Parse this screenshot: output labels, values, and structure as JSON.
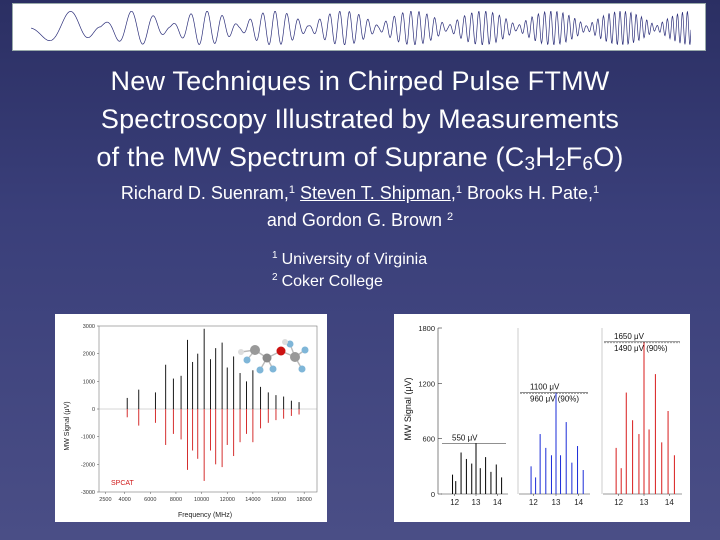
{
  "slide": {
    "title": {
      "line1": "New Techniques in Chirped Pulse FTMW",
      "line2": "Spectroscopy Illustrated by Measurements",
      "line3_prefix": "of the MW Spectrum of Suprane (C",
      "sub1": "3",
      "mid1": "H",
      "sub2": "2",
      "mid2": "F",
      "sub3": "6",
      "suffix": "O)"
    },
    "authors": {
      "a1": "Richard D. Suenram,",
      "a1_sup": "1",
      "a2": "Steven T. Shipman",
      "a2_tail": ",",
      "a2_sup": "1",
      "a3": "Brooks H. Pate,",
      "a3_sup": "1",
      "a4": "and Gordon G. Brown",
      "a4_sup": "2"
    },
    "affiliations": [
      {
        "sup": "1",
        "name": "University of Virginia"
      },
      {
        "sup": "2",
        "name": "Coker College"
      }
    ]
  },
  "chart_data": [
    {
      "type": "bar",
      "xlabel": "Frequency (MHz)",
      "ylabel": "MW Signal (μV)",
      "ylim": [
        -3000,
        3000
      ],
      "xlim": [
        2000,
        19000
      ],
      "y_ticks": [
        "3000",
        "2000",
        "1000",
        "0",
        "-1000",
        "-2000",
        "-3000"
      ],
      "x_ticks": [
        "2500",
        "4000",
        "6000",
        "8000",
        "10000",
        "12000",
        "14000",
        "16000",
        "18000"
      ],
      "annotation": "SPCAT",
      "series_colors": {
        "observed": "#000000",
        "predicted": "#d01818"
      },
      "observed": [
        [
          4200,
          400
        ],
        [
          5100,
          700
        ],
        [
          6400,
          600
        ],
        [
          7200,
          1600
        ],
        [
          7800,
          1100
        ],
        [
          8400,
          1200
        ],
        [
          8900,
          2500
        ],
        [
          9300,
          1700
        ],
        [
          9700,
          2000
        ],
        [
          10200,
          2900
        ],
        [
          10700,
          1800
        ],
        [
          11100,
          2200
        ],
        [
          11600,
          2400
        ],
        [
          12000,
          1500
        ],
        [
          12500,
          1900
        ],
        [
          13000,
          1300
        ],
        [
          13500,
          1000
        ],
        [
          14000,
          1400
        ],
        [
          14600,
          800
        ],
        [
          15200,
          600
        ],
        [
          15800,
          500
        ],
        [
          16400,
          450
        ],
        [
          17000,
          300
        ],
        [
          17600,
          250
        ]
      ],
      "predicted": [
        [
          4200,
          -300
        ],
        [
          5100,
          -600
        ],
        [
          6400,
          -500
        ],
        [
          7200,
          -1300
        ],
        [
          7800,
          -900
        ],
        [
          8400,
          -1100
        ],
        [
          8900,
          -2200
        ],
        [
          9300,
          -1500
        ],
        [
          9700,
          -1800
        ],
        [
          10200,
          -2600
        ],
        [
          10700,
          -1500
        ],
        [
          11100,
          -2000
        ],
        [
          11600,
          -2100
        ],
        [
          12000,
          -1300
        ],
        [
          12500,
          -1700
        ],
        [
          13000,
          -1200
        ],
        [
          13500,
          -900
        ],
        [
          14000,
          -1200
        ],
        [
          14600,
          -700
        ],
        [
          15200,
          -500
        ],
        [
          15800,
          -400
        ],
        [
          16400,
          -350
        ],
        [
          17000,
          -250
        ],
        [
          17600,
          -200
        ]
      ]
    },
    {
      "type": "bar",
      "ylabel": "MW Signal (μV)",
      "ylim": [
        0,
        1800
      ],
      "y_ticks": [
        "1800",
        "1200",
        "600",
        "0"
      ],
      "x_ticks": [
        "12",
        "13",
        "14"
      ],
      "panels": [
        {
          "color": "#000000",
          "xlim": [
            11.5,
            14.5
          ],
          "labels": [
            "550 μV"
          ],
          "peaks": [
            [
              11.9,
              210
            ],
            [
              12.05,
              140
            ],
            [
              12.3,
              450
            ],
            [
              12.55,
              380
            ],
            [
              12.8,
              330
            ],
            [
              13.0,
              550
            ],
            [
              13.2,
              280
            ],
            [
              13.45,
              400
            ],
            [
              13.7,
              240
            ],
            [
              13.95,
              320
            ],
            [
              14.2,
              180
            ]
          ]
        },
        {
          "color": "#1a2bd8",
          "xlim": [
            11.5,
            14.5
          ],
          "labels": [
            "1100 μV",
            "960 μV (90%)"
          ],
          "peaks": [
            [
              11.9,
              300
            ],
            [
              12.1,
              180
            ],
            [
              12.3,
              650
            ],
            [
              12.55,
              500
            ],
            [
              12.8,
              420
            ],
            [
              13.0,
              1100
            ],
            [
              13.2,
              420
            ],
            [
              13.45,
              780
            ],
            [
              13.7,
              340
            ],
            [
              13.95,
              520
            ],
            [
              14.2,
              260
            ]
          ]
        },
        {
          "color": "#d81b1b",
          "xlim": [
            11.5,
            14.5
          ],
          "labels": [
            "1650 μV",
            "1490 μV (90%)"
          ],
          "peaks": [
            [
              11.9,
              500
            ],
            [
              12.1,
              280
            ],
            [
              12.3,
              1100
            ],
            [
              12.55,
              800
            ],
            [
              12.8,
              650
            ],
            [
              13.0,
              1650
            ],
            [
              13.2,
              700
            ],
            [
              13.45,
              1300
            ],
            [
              13.7,
              560
            ],
            [
              13.95,
              900
            ],
            [
              14.2,
              420
            ]
          ]
        }
      ]
    }
  ]
}
